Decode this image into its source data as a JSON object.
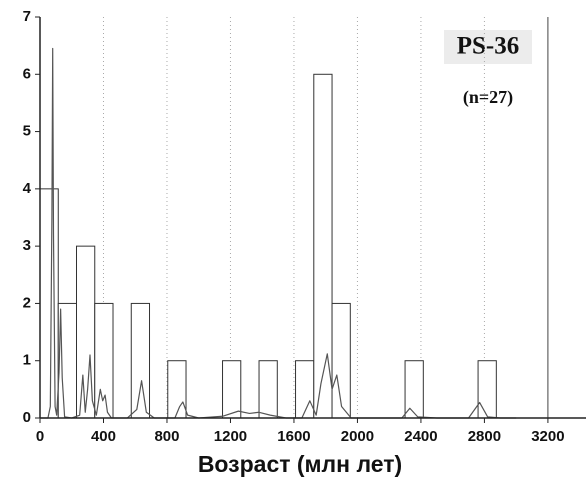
{
  "chart_data": {
    "type": "histogram",
    "annotations": [
      "PS-36",
      "(n=27)"
    ],
    "xlabel": "Возраст  (млн  лет)",
    "bins": [
      0,
      115,
      230,
      345,
      460,
      575,
      690,
      805,
      920,
      1035,
      1150,
      1265,
      1380,
      1495,
      1610,
      1725,
      1840,
      1955,
      2070,
      2185,
      2300,
      2415,
      2530,
      2645,
      2760,
      2875,
      2990
    ],
    "counts": [
      4,
      2,
      3,
      2,
      0,
      2,
      0,
      1,
      0,
      0,
      1,
      0,
      1,
      0,
      1,
      6,
      2,
      0,
      0,
      0,
      1,
      0,
      0,
      0,
      1,
      0
    ],
    "curve": {
      "x": [
        0,
        50,
        65,
        75,
        80,
        85,
        95,
        105,
        120,
        130,
        140,
        155,
        200,
        250,
        270,
        285,
        300,
        315,
        330,
        355,
        380,
        395,
        410,
        425,
        450,
        550,
        610,
        640,
        670,
        720,
        850,
        880,
        900,
        930,
        1000,
        1150,
        1250,
        1320,
        1380,
        1450,
        1550,
        1650,
        1700,
        1740,
        1770,
        1810,
        1840,
        1870,
        1900,
        1960,
        2100,
        2280,
        2330,
        2380,
        2500,
        2700,
        2770,
        2820,
        2900,
        3000
      ],
      "values": [
        0,
        0,
        0.2,
        3.5,
        6.45,
        3.2,
        0.2,
        0.05,
        0.8,
        1.9,
        0.7,
        0.02,
        0,
        0.05,
        0.75,
        0.1,
        0.5,
        1.1,
        0.3,
        0.05,
        0.5,
        0.3,
        0.4,
        0.1,
        0,
        0,
        0.15,
        0.65,
        0.1,
        0,
        0,
        0.2,
        0.28,
        0.05,
        0,
        0.03,
        0.12,
        0.08,
        0.1,
        0.05,
        0,
        0,
        0.3,
        0.05,
        0.6,
        1.12,
        0.5,
        0.75,
        0.2,
        0,
        0,
        0,
        0.17,
        0.02,
        0,
        0,
        0.27,
        0.02,
        0,
        0
      ],
      "color": "#555555"
    },
    "bar_color": "#ffffff",
    "xlim": [
      0,
      3440
    ],
    "xticks": [
      0,
      400,
      800,
      1200,
      1600,
      2000,
      2400,
      2800,
      3200
    ],
    "ylim": [
      0,
      7
    ],
    "yticks": [
      0,
      1,
      2,
      3,
      4,
      5,
      6,
      7
    ],
    "grid": true
  }
}
